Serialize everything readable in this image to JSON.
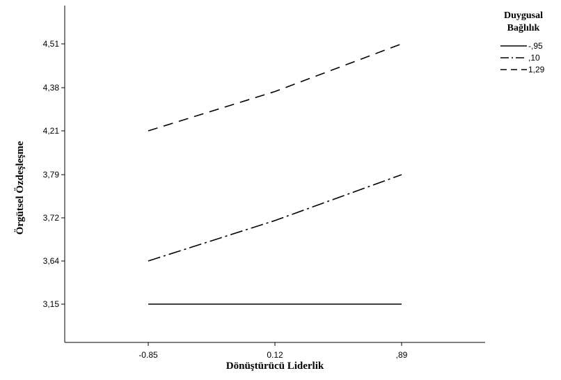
{
  "chart_data": {
    "type": "line",
    "xlabel": "Dönüştürücü Liderlik",
    "ylabel": "Örgütsel Özdeşleşme",
    "categories": [
      "-0.85",
      "0.12",
      ",89"
    ],
    "y_ticks": [
      "3,15",
      "3,64",
      "3,72",
      "3,79",
      "4,21",
      "4,38",
      "4,51"
    ],
    "legend": {
      "title_lines": [
        "Duygusal",
        "Bağlılık"
      ],
      "placement": "top-right"
    },
    "series": [
      {
        "name": "-,95",
        "style": "solid",
        "values": [
          3.15,
          3.15,
          3.15
        ]
      },
      {
        "name": ",10",
        "style": "dash-dot",
        "values": [
          3.64,
          3.715,
          3.79
        ]
      },
      {
        "name": "1,29",
        "style": "dashed",
        "values": [
          4.21,
          4.365,
          4.51
        ]
      }
    ],
    "grid": false,
    "line_color": "#000000"
  }
}
